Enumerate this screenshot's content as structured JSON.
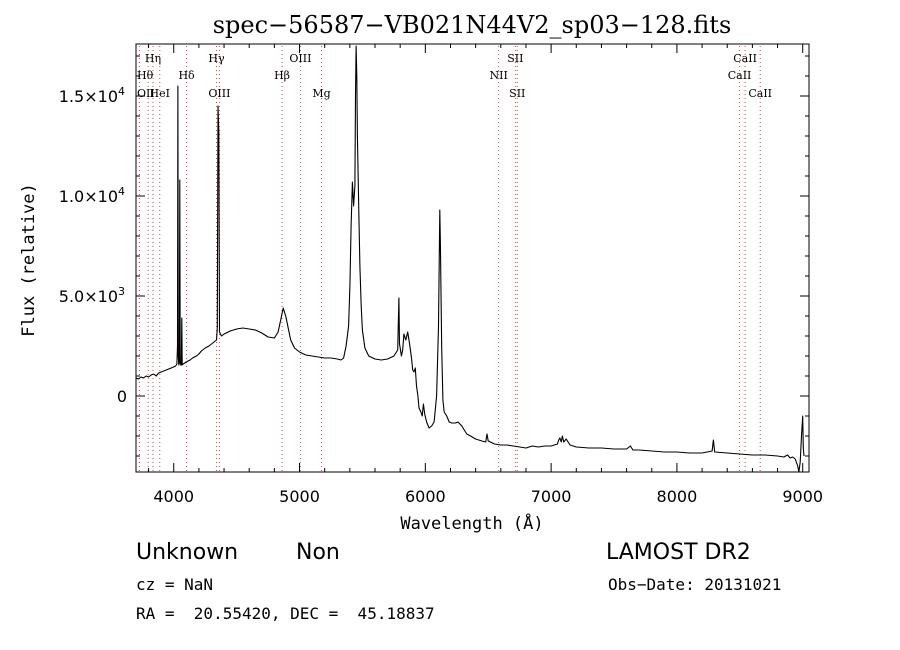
{
  "chart_data": {
    "type": "line",
    "title": "spec−56587−VB021N44V2_sp03−128.fits",
    "xlabel": "Wavelength (Å)",
    "ylabel": "Flux (relative)",
    "xlim": [
      3700,
      9050
    ],
    "ylim": [
      -3800,
      17600
    ],
    "grid": false,
    "xticks": [
      {
        "value": 4000,
        "label": "4000"
      },
      {
        "value": 5000,
        "label": "5000"
      },
      {
        "value": 6000,
        "label": "6000"
      },
      {
        "value": 7000,
        "label": "7000"
      },
      {
        "value": 8000,
        "label": "8000"
      },
      {
        "value": 9000,
        "label": "9000"
      }
    ],
    "yticks": [
      {
        "value": 0,
        "label": "0",
        "mant": "",
        "exp": ""
      },
      {
        "value": 5000,
        "label": "",
        "mant": "5.0×10",
        "exp": "3"
      },
      {
        "value": 10000,
        "label": "",
        "mant": "1.0×10",
        "exp": "4"
      },
      {
        "value": 15000,
        "label": "",
        "mant": "1.5×10",
        "exp": "4"
      }
    ],
    "line_markers": [
      {
        "label": "Hη",
        "wavelength": 3835,
        "row": 1
      },
      {
        "label": "Hθ",
        "wavelength": 3797,
        "row": 2
      },
      {
        "label": "OII",
        "wavelength": 3727,
        "row": 3
      },
      {
        "label": "HeI",
        "wavelength": 3889,
        "row": 3
      },
      {
        "label": "Hδ",
        "wavelength": 4102,
        "row": 2
      },
      {
        "label": "Hγ",
        "wavelength": 4340,
        "row": 1
      },
      {
        "label": "OIII",
        "wavelength": 4363,
        "row": 3
      },
      {
        "label": "Hβ",
        "wavelength": 4861,
        "row": 2
      },
      {
        "label": "OIII",
        "wavelength": 5007,
        "row": 1
      },
      {
        "label": "Mg",
        "wavelength": 5175,
        "row": 3
      },
      {
        "label": "NII",
        "wavelength": 6583,
        "row": 2
      },
      {
        "label": "SII",
        "wavelength": 6716,
        "row": 1
      },
      {
        "label": "SII",
        "wavelength": 6731,
        "row": 3
      },
      {
        "label": "CaII",
        "wavelength": 8498,
        "row": 2
      },
      {
        "label": "CaII",
        "wavelength": 8542,
        "row": 1
      },
      {
        "label": "CaII",
        "wavelength": 8662,
        "row": 3
      }
    ],
    "series": [
      {
        "points": [
          [
            3700,
            900
          ],
          [
            3720,
            850
          ],
          [
            3740,
            950
          ],
          [
            3760,
            900
          ],
          [
            3780,
            1000
          ],
          [
            3800,
            950
          ],
          [
            3820,
            1050
          ],
          [
            3840,
            1100
          ],
          [
            3860,
            1000
          ],
          [
            3880,
            1150
          ],
          [
            3900,
            1200
          ],
          [
            3920,
            1250
          ],
          [
            3940,
            1300
          ],
          [
            3960,
            1350
          ],
          [
            3980,
            1400
          ],
          [
            4000,
            1450
          ],
          [
            4015,
            1500
          ],
          [
            4025,
            1600
          ],
          [
            4030,
            2500
          ],
          [
            4033,
            15500
          ],
          [
            4036,
            2000
          ],
          [
            4040,
            1550
          ],
          [
            4045,
            1650
          ],
          [
            4048,
            10800
          ],
          [
            4051,
            1800
          ],
          [
            4055,
            1550
          ],
          [
            4060,
            1550
          ],
          [
            4064,
            3900
          ],
          [
            4067,
            1550
          ],
          [
            4075,
            1600
          ],
          [
            4100,
            1700
          ],
          [
            4130,
            1800
          ],
          [
            4150,
            1900
          ],
          [
            4180,
            2000
          ],
          [
            4200,
            2100
          ],
          [
            4220,
            2250
          ],
          [
            4250,
            2400
          ],
          [
            4280,
            2500
          ],
          [
            4300,
            2600
          ],
          [
            4320,
            2700
          ],
          [
            4340,
            2800
          ],
          [
            4346,
            3400
          ],
          [
            4352,
            14500
          ],
          [
            4358,
            13200
          ],
          [
            4364,
            3200
          ],
          [
            4380,
            3000
          ],
          [
            4400,
            3100
          ],
          [
            4450,
            3250
          ],
          [
            4500,
            3350
          ],
          [
            4550,
            3400
          ],
          [
            4600,
            3350
          ],
          [
            4650,
            3300
          ],
          [
            4700,
            3150
          ],
          [
            4750,
            2950
          ],
          [
            4800,
            2900
          ],
          [
            4830,
            3200
          ],
          [
            4850,
            3800
          ],
          [
            4870,
            4400
          ],
          [
            4890,
            4000
          ],
          [
            4910,
            3400
          ],
          [
            4930,
            2800
          ],
          [
            4960,
            2400
          ],
          [
            5000,
            2200
          ],
          [
            5050,
            2050
          ],
          [
            5100,
            2000
          ],
          [
            5150,
            1950
          ],
          [
            5200,
            1900
          ],
          [
            5250,
            1900
          ],
          [
            5300,
            1850
          ],
          [
            5330,
            1800
          ],
          [
            5350,
            1900
          ],
          [
            5370,
            2500
          ],
          [
            5390,
            3500
          ],
          [
            5400,
            5500
          ],
          [
            5410,
            8500
          ],
          [
            5420,
            10700
          ],
          [
            5430,
            9500
          ],
          [
            5440,
            10500
          ],
          [
            5445,
            15000
          ],
          [
            5450,
            17500
          ],
          [
            5455,
            16000
          ],
          [
            5460,
            13000
          ],
          [
            5470,
            9500
          ],
          [
            5480,
            6500
          ],
          [
            5490,
            4500
          ],
          [
            5500,
            3300
          ],
          [
            5520,
            2400
          ],
          [
            5550,
            2000
          ],
          [
            5600,
            1850
          ],
          [
            5650,
            1800
          ],
          [
            5700,
            1850
          ],
          [
            5750,
            2000
          ],
          [
            5780,
            2300
          ],
          [
            5790,
            4900
          ],
          [
            5795,
            2600
          ],
          [
            5800,
            2400
          ],
          [
            5810,
            2000
          ],
          [
            5820,
            2300
          ],
          [
            5830,
            3100
          ],
          [
            5845,
            2800
          ],
          [
            5860,
            3200
          ],
          [
            5875,
            2600
          ],
          [
            5890,
            1900
          ],
          [
            5900,
            1300
          ],
          [
            5910,
            1200
          ],
          [
            5920,
            1400
          ],
          [
            5930,
            500
          ],
          [
            5940,
            50
          ],
          [
            5950,
            -600
          ],
          [
            5965,
            -800
          ],
          [
            5975,
            -1000
          ],
          [
            5985,
            -400
          ],
          [
            5995,
            -900
          ],
          [
            6010,
            -1300
          ],
          [
            6030,
            -1600
          ],
          [
            6050,
            -1500
          ],
          [
            6070,
            -1300
          ],
          [
            6090,
            0
          ],
          [
            6105,
            3500
          ],
          [
            6115,
            9300
          ],
          [
            6120,
            7600
          ],
          [
            6130,
            2400
          ],
          [
            6140,
            -200
          ],
          [
            6150,
            -800
          ],
          [
            6170,
            -1000
          ],
          [
            6190,
            -1300
          ],
          [
            6210,
            -1350
          ],
          [
            6240,
            -1350
          ],
          [
            6260,
            -1300
          ],
          [
            6290,
            -1500
          ],
          [
            6310,
            -1700
          ],
          [
            6330,
            -1900
          ],
          [
            6360,
            -2000
          ],
          [
            6400,
            -2150
          ],
          [
            6450,
            -2250
          ],
          [
            6480,
            -2300
          ],
          [
            6490,
            -1900
          ],
          [
            6500,
            -2250
          ],
          [
            6550,
            -2400
          ],
          [
            6600,
            -2450
          ],
          [
            6650,
            -2450
          ],
          [
            6700,
            -2500
          ],
          [
            6750,
            -2550
          ],
          [
            6800,
            -2600
          ],
          [
            6850,
            -2500
          ],
          [
            6900,
            -2550
          ],
          [
            6950,
            -2500
          ],
          [
            7000,
            -2500
          ],
          [
            7050,
            -2400
          ],
          [
            7060,
            -2200
          ],
          [
            7070,
            -2100
          ],
          [
            7080,
            -2300
          ],
          [
            7090,
            -2000
          ],
          [
            7100,
            -2300
          ],
          [
            7120,
            -2150
          ],
          [
            7150,
            -2450
          ],
          [
            7200,
            -2550
          ],
          [
            7300,
            -2600
          ],
          [
            7400,
            -2600
          ],
          [
            7500,
            -2650
          ],
          [
            7600,
            -2650
          ],
          [
            7630,
            -2500
          ],
          [
            7650,
            -2700
          ],
          [
            7700,
            -2700
          ],
          [
            7800,
            -2750
          ],
          [
            7900,
            -2800
          ],
          [
            8000,
            -2800
          ],
          [
            8100,
            -2850
          ],
          [
            8200,
            -2850
          ],
          [
            8280,
            -2750
          ],
          [
            8290,
            -2200
          ],
          [
            8300,
            -2800
          ],
          [
            8400,
            -2850
          ],
          [
            8500,
            -2900
          ],
          [
            8600,
            -2950
          ],
          [
            8700,
            -2950
          ],
          [
            8800,
            -3000
          ],
          [
            8850,
            -3050
          ],
          [
            8880,
            -2950
          ],
          [
            8900,
            -3100
          ],
          [
            8920,
            -3050
          ],
          [
            8940,
            -3150
          ],
          [
            8960,
            -3500
          ],
          [
            8970,
            -3800
          ],
          [
            8980,
            -3300
          ],
          [
            8990,
            -2000
          ],
          [
            9000,
            -1000
          ],
          [
            9005,
            -2600
          ],
          [
            9010,
            -3000
          ]
        ]
      }
    ]
  },
  "info": {
    "object_class": "Unknown",
    "subclass": "Non",
    "cz": "cz = NaN",
    "coords": "RA =  20.55420, DEC =  45.18837",
    "survey": "LAMOST DR2",
    "obs_date": "Obs−Date: 20131021"
  }
}
